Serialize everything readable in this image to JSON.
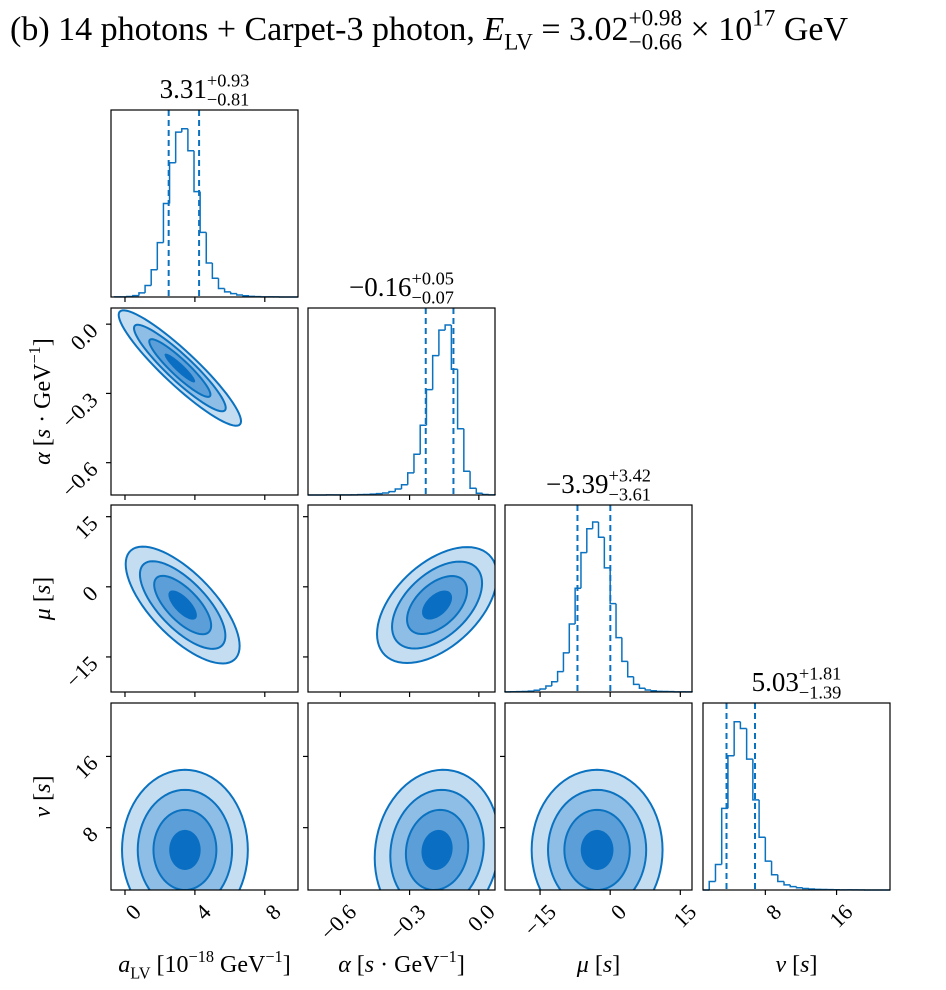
{
  "chart_data": {
    "type": "corner",
    "title": [
      {
        "t": "(b) 14 photons + Carpet-3 photon, ",
        "s": "rm"
      },
      {
        "t": "E",
        "s": "it"
      },
      {
        "t": "LV",
        "s": "sub"
      },
      {
        "t": " = 3.02",
        "s": "rm"
      },
      {
        "t": "+0.98",
        "s": "sup"
      },
      {
        "t": "−0.66",
        "s": "sub"
      },
      {
        "t": " × 10",
        "s": "rm"
      },
      {
        "t": "17",
        "s": "sup"
      },
      {
        "t": " GeV",
        "s": "rm"
      }
    ],
    "color": "#0b72c0",
    "fill_colors": [
      "#c5ddf1",
      "#8ebde6",
      "#5c9fd8",
      "#0a6fc2"
    ],
    "levels": [
      2,
      1.5,
      1,
      0.5
    ],
    "parameters": [
      {
        "label": [
          {
            "t": "a",
            "s": "it"
          },
          {
            "t": "LV",
            "s": "sub"
          },
          {
            "t": " [10",
            "s": "rm"
          },
          {
            "t": "−18",
            "s": "sup"
          },
          {
            "t": " GeV",
            "s": "rm"
          },
          {
            "t": "−1",
            "s": "sup"
          },
          {
            "t": "]",
            "s": "rm"
          }
        ],
        "lim": [
          -0.8,
          9.9
        ],
        "ticks": [
          0,
          4,
          8
        ],
        "title": [
          {
            "t": "3.31",
            "s": "rm"
          },
          {
            "t": "+0.93",
            "s": "sup"
          },
          {
            "t": "−0.81",
            "s": "sub"
          }
        ],
        "median": 3.31,
        "err_plus": 0.93,
        "err_minus": 0.81,
        "bins": [
          -0.6,
          -0.25,
          0.1,
          0.45,
          0.8,
          1.15,
          1.5,
          1.85,
          2.2,
          2.55,
          2.9,
          3.25,
          3.6,
          3.95,
          4.3,
          4.65,
          5.0,
          5.35,
          5.7,
          6.05,
          6.4,
          6.75,
          7.1,
          7.45,
          7.8,
          8.15,
          8.5,
          8.85,
          9.2,
          9.55,
          9.9
        ],
        "counts": [
          0.05,
          0.1,
          0.3,
          0.8,
          2.4,
          6.8,
          16,
          32,
          55,
          79,
          97,
          99,
          86,
          62,
          38,
          20,
          11,
          5,
          3,
          2,
          1.2,
          0.7,
          0.4,
          0.2,
          0.1,
          0.1,
          0.05,
          0,
          0,
          0
        ],
        "ylim": [
          0,
          110
        ]
      },
      {
        "label": [
          {
            "t": "α",
            "s": "it"
          },
          {
            "t": " [",
            "s": "rm"
          },
          {
            "t": "s",
            "s": "it"
          },
          {
            "t": " · GeV",
            "s": "rm"
          },
          {
            "t": "−1",
            "s": "sup"
          },
          {
            "t": "]",
            "s": "rm"
          }
        ],
        "lim": [
          -0.74,
          0.07
        ],
        "ticks": [
          {
            "value": -0.6,
            "label": "−0.6"
          },
          {
            "value": -0.3,
            "label": "−0.3"
          },
          {
            "value": 0,
            "label": "0.0"
          }
        ],
        "title": [
          {
            "t": "−0.16",
            "s": "rm"
          },
          {
            "t": "+0.05",
            "s": "sup"
          },
          {
            "t": "−0.07",
            "s": "sub"
          }
        ],
        "median": -0.16,
        "err_plus": 0.05,
        "err_minus": 0.07,
        "bins": [
          -0.74,
          -0.713,
          -0.686,
          -0.659,
          -0.632,
          -0.605,
          -0.578,
          -0.551,
          -0.524,
          -0.497,
          -0.47,
          -0.443,
          -0.416,
          -0.389,
          -0.362,
          -0.335,
          -0.308,
          -0.281,
          -0.254,
          -0.227,
          -0.2,
          -0.173,
          -0.146,
          -0.119,
          -0.092,
          -0.065,
          -0.038,
          -0.011,
          0.016,
          0.043,
          0.07
        ],
        "counts": [
          0,
          0,
          0,
          0.05,
          0.05,
          0.05,
          0.05,
          0.1,
          0.2,
          0.3,
          0.5,
          0.8,
          1.2,
          2,
          3.5,
          6,
          13,
          24,
          41,
          62,
          82,
          97,
          100,
          74,
          39,
          14,
          4,
          1,
          0.3,
          0.1
        ],
        "ylim": [
          0,
          110
        ]
      },
      {
        "label": [
          {
            "t": "μ",
            "s": "it"
          },
          {
            "t": " [",
            "s": "rm"
          },
          {
            "t": "s",
            "s": "it"
          },
          {
            "t": "]",
            "s": "rm"
          }
        ],
        "lim": [
          -22.5,
          17.5
        ],
        "ticks": [
          {
            "value": -15,
            "label": "−15"
          },
          0,
          15
        ],
        "title": [
          {
            "t": "−3.39",
            "s": "rm"
          },
          {
            "t": "+3.42",
            "s": "sup"
          },
          {
            "t": "−3.61",
            "s": "sub"
          }
        ],
        "median": -3.39,
        "err_plus": 3.42,
        "err_minus": 3.61,
        "bins": [
          -22.5,
          -21.25,
          -20,
          -18.75,
          -17.5,
          -16.25,
          -15,
          -13.75,
          -12.5,
          -11.25,
          -10,
          -8.75,
          -7.5,
          -6.25,
          -5,
          -3.75,
          -2.5,
          -1.25,
          0,
          1.25,
          2.5,
          3.75,
          5,
          6.25,
          7.5,
          8.75,
          10,
          11.25,
          12.5,
          13.75,
          15,
          16.25,
          17.5
        ],
        "counts": [
          0.1,
          0.15,
          0.2,
          0.3,
          0.5,
          1,
          1.8,
          3.5,
          6,
          12,
          23,
          40,
          61,
          82,
          96,
          100,
          91,
          73,
          52,
          32,
          18,
          9,
          4.5,
          2.2,
          1.2,
          0.7,
          0.4,
          0.3,
          0.2,
          0.1,
          0.1,
          0.05
        ],
        "ylim": [
          0,
          110
        ]
      },
      {
        "label": [
          {
            "t": "v",
            "s": "it"
          },
          {
            "t": " [",
            "s": "rm"
          },
          {
            "t": "s",
            "s": "it"
          },
          {
            "t": "]",
            "s": "rm"
          }
        ],
        "lim": [
          1,
          22
        ],
        "ticks": [
          8,
          16
        ],
        "title": [
          {
            "t": "5.03",
            "s": "rm"
          },
          {
            "t": "+1.81",
            "s": "sup"
          },
          {
            "t": "−1.39",
            "s": "sub"
          }
        ],
        "median": 5.03,
        "err_plus": 1.81,
        "err_minus": 1.39,
        "bins": [
          1,
          1.7,
          2.4,
          3.1,
          3.8,
          4.5,
          5.2,
          5.9,
          6.6,
          7.3,
          8,
          8.7,
          9.4,
          10.1,
          10.8,
          11.5,
          12.2,
          12.9,
          13.6,
          14.3,
          15,
          15.7,
          16.4,
          17.1,
          17.8,
          18.5,
          19.2,
          19.9,
          20.6,
          21.3,
          22
        ],
        "counts": [
          0,
          5,
          15,
          48,
          79,
          99,
          95,
          77,
          53,
          31,
          17,
          9,
          5,
          3,
          2,
          1.3,
          0.9,
          0.6,
          0.4,
          0.3,
          0.2,
          0.15,
          0.1,
          0.1,
          0.05,
          0.05,
          0,
          0,
          0,
          0
        ],
        "ylim": [
          0,
          110
        ]
      }
    ],
    "pairs": [
      {
        "x": 0,
        "y": 1,
        "center": [
          3.14,
          -0.19
        ],
        "sd": [
          1.75,
          0.125
        ],
        "rho": -0.92
      },
      {
        "x": 0,
        "y": 2,
        "center": [
          3.3,
          -3.9
        ],
        "sd": [
          1.63,
          6.25
        ],
        "rho": -0.7
      },
      {
        "x": 1,
        "y": 2,
        "center": [
          -0.181,
          -3.9
        ],
        "sd": [
          0.13,
          6.2
        ],
        "rho": 0.5
      },
      {
        "x": 0,
        "y": 3,
        "center": [
          3.43,
          5.5
        ],
        "sd": [
          1.8,
          4.5
        ],
        "rho": 0
      },
      {
        "x": 1,
        "y": 3,
        "center": [
          -0.181,
          5.5
        ],
        "sd": [
          0.135,
          4.5
        ],
        "rho": 0.1
      },
      {
        "x": 2,
        "y": 3,
        "center": [
          -2.8,
          5.5
        ],
        "sd": [
          7,
          4.5
        ],
        "rho": 0
      }
    ]
  }
}
